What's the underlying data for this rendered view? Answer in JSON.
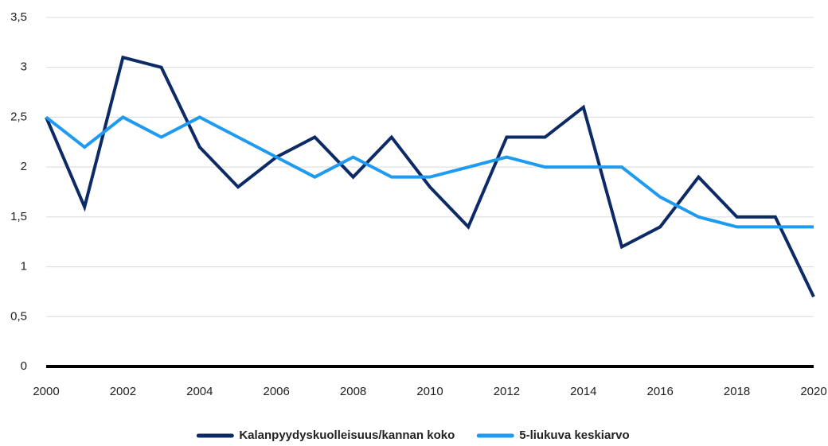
{
  "chart_data": {
    "type": "line",
    "x": [
      2000,
      2001,
      2002,
      2003,
      2004,
      2005,
      2006,
      2007,
      2008,
      2009,
      2010,
      2011,
      2012,
      2013,
      2014,
      2015,
      2016,
      2017,
      2018,
      2019,
      2020
    ],
    "series": [
      {
        "name": "Kalanpyydyskuolleisuus/kannan koko",
        "color": "#0c2a66",
        "values": [
          2.5,
          1.6,
          3.1,
          3.0,
          2.2,
          1.8,
          2.1,
          2.3,
          1.9,
          2.3,
          1.8,
          1.4,
          2.3,
          2.3,
          2.6,
          1.2,
          1.4,
          1.9,
          1.5,
          1.5,
          0.7
        ]
      },
      {
        "name": "5-liukuva keskiarvo",
        "color": "#1e9bf0",
        "values": [
          2.5,
          2.2,
          2.5,
          2.3,
          2.5,
          2.3,
          2.1,
          1.9,
          2.1,
          1.9,
          1.9,
          2.0,
          2.1,
          2.0,
          2.0,
          2.0,
          1.7,
          1.5,
          1.4,
          1.4,
          1.4
        ]
      }
    ],
    "xlim": [
      2000,
      2020
    ],
    "xticks": [
      2000,
      2002,
      2004,
      2006,
      2008,
      2010,
      2012,
      2014,
      2016,
      2018,
      2020
    ],
    "ylim": [
      0,
      3.5
    ],
    "yticks": [
      0,
      {
        "value": 0.5,
        "label": "0,5"
      },
      1,
      {
        "value": 1.5,
        "label": "1,5"
      },
      2,
      {
        "value": 2.5,
        "label": "2,5"
      },
      3,
      {
        "value": 3.5,
        "label": "3,5"
      }
    ],
    "grid": true,
    "legend": "bottom"
  }
}
